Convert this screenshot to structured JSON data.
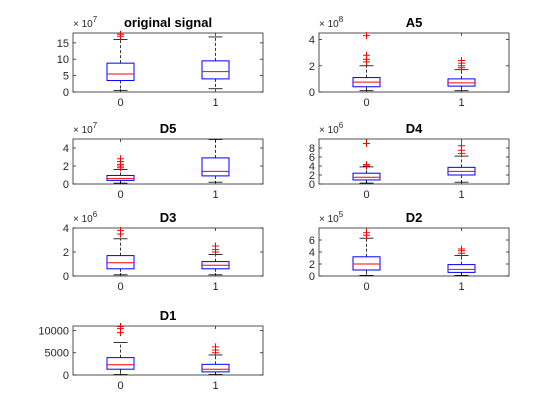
{
  "figure": {
    "colors": {
      "box": "#0000ff",
      "median": "#ff0000",
      "outlier": "#ff0000",
      "whisker": "#000000",
      "axis": "#262626"
    }
  },
  "chart_data": [
    {
      "type": "box",
      "title": "original signal",
      "exponent_label": "× 10^7",
      "exp_base": "× 10",
      "exp_power": "7",
      "ylim": [
        0,
        18
      ],
      "yticks": [
        0,
        5,
        10,
        15
      ],
      "ytick_labels": [
        "0",
        "5",
        "10",
        "15"
      ],
      "categories": [
        "0",
        "1"
      ],
      "boxes": [
        {
          "min": 0.5,
          "q1": 3.5,
          "median": 5.5,
          "q3": 8.8,
          "max": 16,
          "outliers": [
            17,
            17.6
          ]
        },
        {
          "min": 1.0,
          "q1": 4.0,
          "median": 6.2,
          "q3": 9.5,
          "max": 16.8,
          "outliers": []
        }
      ]
    },
    {
      "type": "box",
      "title": "A5",
      "exponent_label": "× 10^8",
      "exp_base": "× 10",
      "exp_power": "8",
      "ylim": [
        0,
        4.5
      ],
      "yticks": [
        0,
        2,
        4
      ],
      "ytick_labels": [
        "0",
        "2",
        "4"
      ],
      "categories": [
        "0",
        "1"
      ],
      "boxes": [
        {
          "min": 0.1,
          "q1": 0.4,
          "median": 0.75,
          "q3": 1.1,
          "max": 2.0,
          "outliers": [
            2.3,
            2.5,
            2.8,
            4.3
          ]
        },
        {
          "min": 0.1,
          "q1": 0.45,
          "median": 0.7,
          "q3": 1.0,
          "max": 1.7,
          "outliers": [
            1.85,
            2.0,
            2.2,
            2.4
          ]
        }
      ]
    },
    {
      "type": "box",
      "title": "D5",
      "exponent_label": "× 10^7",
      "exp_base": "× 10",
      "exp_power": "7",
      "ylim": [
        0,
        5
      ],
      "yticks": [
        0,
        2,
        4
      ],
      "ytick_labels": [
        "0",
        "2",
        "4"
      ],
      "categories": [
        "0",
        "1"
      ],
      "boxes": [
        {
          "min": 0.1,
          "q1": 0.4,
          "median": 0.6,
          "q3": 0.95,
          "max": 1.6,
          "outliers": [
            1.8,
            2.0,
            2.2,
            2.5,
            2.8
          ]
        },
        {
          "min": 0.2,
          "q1": 0.9,
          "median": 1.4,
          "q3": 2.9,
          "max": 4.95,
          "outliers": []
        }
      ]
    },
    {
      "type": "box",
      "title": "D4",
      "exponent_label": "× 10^6",
      "exp_base": "× 10",
      "exp_power": "6",
      "ylim": [
        0,
        10
      ],
      "yticks": [
        0,
        2,
        4,
        6,
        8
      ],
      "ytick_labels": [
        "0",
        "2",
        "4",
        "6",
        "8"
      ],
      "categories": [
        "0",
        "1"
      ],
      "boxes": [
        {
          "min": 0.2,
          "q1": 0.9,
          "median": 1.5,
          "q3": 2.4,
          "max": 3.8,
          "outliers": [
            4.0,
            4.3,
            9.0
          ]
        },
        {
          "min": 0.4,
          "q1": 2.0,
          "median": 2.8,
          "q3": 3.7,
          "max": 6.2,
          "outliers": [
            6.8,
            7.5,
            8.5
          ]
        }
      ]
    },
    {
      "type": "box",
      "title": "D3",
      "exponent_label": "× 10^6",
      "exp_base": "× 10",
      "exp_power": "6",
      "ylim": [
        0,
        4
      ],
      "yticks": [
        0,
        2,
        4
      ],
      "ytick_labels": [
        "0",
        "2",
        "4"
      ],
      "categories": [
        "0",
        "1"
      ],
      "boxes": [
        {
          "min": 0.1,
          "q1": 0.6,
          "median": 1.1,
          "q3": 1.7,
          "max": 3.1,
          "outliers": [
            3.5,
            3.8
          ]
        },
        {
          "min": 0.1,
          "q1": 0.6,
          "median": 0.9,
          "q3": 1.2,
          "max": 1.8,
          "outliers": [
            2.0,
            2.2,
            2.5
          ]
        }
      ]
    },
    {
      "type": "box",
      "title": "D2",
      "exponent_label": "× 10^5",
      "exp_base": "× 10",
      "exp_power": "5",
      "ylim": [
        0,
        8
      ],
      "yticks": [
        0,
        2,
        4,
        6
      ],
      "ytick_labels": [
        "0",
        "2",
        "4",
        "6"
      ],
      "categories": [
        "0",
        "1"
      ],
      "boxes": [
        {
          "min": 0.1,
          "q1": 1.0,
          "median": 2.0,
          "q3": 3.2,
          "max": 6.3,
          "outliers": [
            6.8,
            7.2
          ]
        },
        {
          "min": 0.1,
          "q1": 0.6,
          "median": 1.1,
          "q3": 1.9,
          "max": 3.4,
          "outliers": [
            3.8,
            4.2,
            4.5
          ]
        }
      ]
    },
    {
      "type": "box",
      "title": "D1",
      "exponent_label": "",
      "exp_base": "",
      "exp_power": "",
      "ylim": [
        0,
        11000
      ],
      "yticks": [
        0,
        5000,
        10000
      ],
      "ytick_labels": [
        "0",
        "5000",
        "10000"
      ],
      "categories": [
        "0",
        "1"
      ],
      "boxes": [
        {
          "min": 100,
          "q1": 1300,
          "median": 2300,
          "q3": 3900,
          "max": 7300,
          "outliers": [
            9500,
            10400,
            10900
          ]
        },
        {
          "min": 100,
          "q1": 700,
          "median": 1300,
          "q3": 2400,
          "max": 4500,
          "outliers": [
            5000,
            5600,
            6300
          ]
        }
      ]
    }
  ]
}
